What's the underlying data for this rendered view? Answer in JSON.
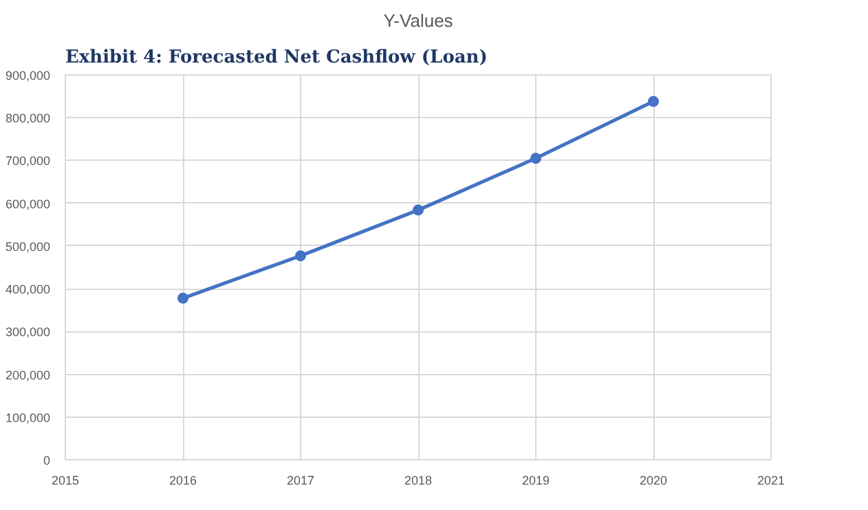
{
  "chart_data": {
    "type": "line",
    "title": "Exhibit 4: Forecasted Net Cashflow (Loan)",
    "subtitle": "Y-Values",
    "x": [
      2016,
      2017,
      2018,
      2019,
      2020
    ],
    "series": [
      {
        "color": "#4472c4",
        "values": [
          378000,
          477000,
          584000,
          705000,
          838000
        ]
      }
    ],
    "xlim": [
      2015,
      2021
    ],
    "xticks": [
      2015,
      2016,
      2017,
      2018,
      2019,
      2020,
      2021
    ],
    "ylim": [
      0,
      900000
    ],
    "yticks": [
      0,
      {
        "value": 100000,
        "label": "100,000"
      },
      {
        "value": 200000,
        "label": "200,000"
      },
      {
        "value": 300000,
        "label": "300,000"
      },
      {
        "value": 400000,
        "label": "400,000"
      },
      {
        "value": 500000,
        "label": "500,000"
      },
      {
        "value": 600000,
        "label": "600,000"
      },
      {
        "value": 700000,
        "label": "700,000"
      },
      {
        "value": 800000,
        "label": "800,000"
      },
      {
        "value": 900000,
        "label": "900,000"
      }
    ],
    "grid": true,
    "marker": "circle",
    "line_style": "solid"
  }
}
